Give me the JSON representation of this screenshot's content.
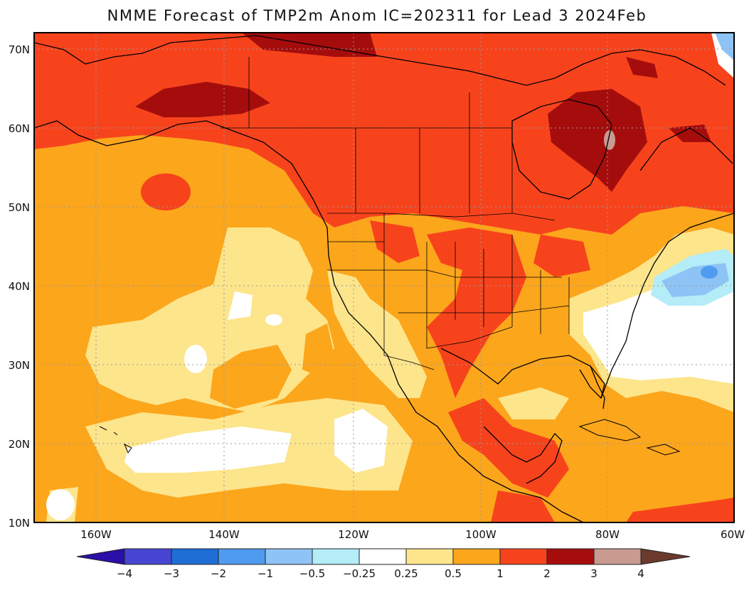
{
  "title": "NMME Forecast of TMP2m Anom IC=202311 for Lead 3 2024Feb",
  "map": {
    "lat_labels": [
      "70N",
      "60N",
      "50N",
      "40N",
      "30N",
      "20N",
      "10N"
    ],
    "lon_labels": [
      "160W",
      "140W",
      "120W",
      "100W",
      "80W",
      "60W"
    ]
  },
  "colorbar": {
    "labels": [
      "-4",
      "-3",
      "-2",
      "-1",
      "-0.5",
      "-0.25",
      "0.25",
      "0.5",
      "1",
      "2",
      "3",
      "4"
    ],
    "colors": {
      "lt_-4": "#2a0fa8",
      "-4_-3": "#4646d2",
      "-3_-2": "#1e6ed6",
      "-2_-1": "#4f9bf0",
      "-1_-0.5": "#8ec3f5",
      "-0.5_-0.25": "#b4ecf7",
      "-0.25_0.25": "#ffffff",
      "0.25_0.5": "#fde58c",
      "0.5_1": "#fca61c",
      "1_2": "#f7431c",
      "2_3": "#a50d0d",
      "3_4": "#c89a90",
      "gt_4": "#6b3a2d"
    }
  }
}
